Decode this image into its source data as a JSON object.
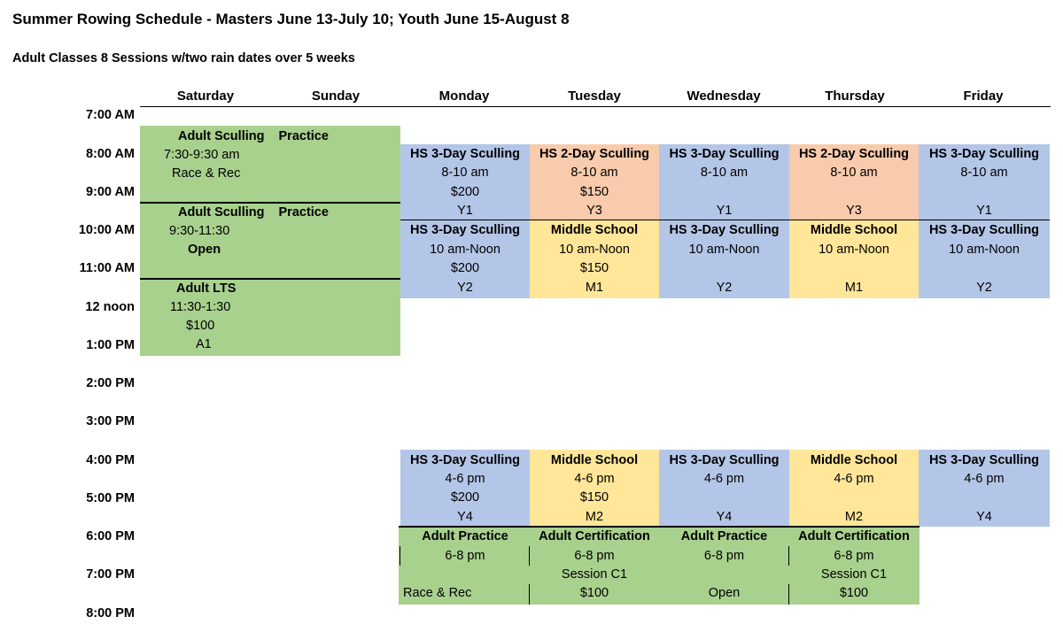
{
  "header": {
    "title": "Summer Rowing Schedule - Masters June 13-July 10; Youth June 15-August 8",
    "subtitle": "Adult Classes 8 Sessions w/two rain dates over 5 weeks"
  },
  "days": [
    "Saturday",
    "Sunday",
    "Monday",
    "Tuesday",
    "Wednesday",
    "Thursday",
    "Friday"
  ],
  "times": [
    "7:00 AM",
    "8:00 AM",
    "9:00 AM",
    "10:00 AM",
    "11:00 AM",
    "12 noon",
    "1:00 PM",
    "2:00 PM",
    "3:00 PM",
    "4:00 PM",
    "5:00 PM",
    "6:00 PM",
    "7:00 PM",
    "8:00 PM"
  ],
  "weekend": {
    "sculling_1": {
      "title": "Adult Sculling",
      "tag": "Practice",
      "time": "7:30-9:30 am",
      "note": "Race & Rec"
    },
    "sculling_2": {
      "title": "Adult Sculling",
      "tag": "Practice",
      "time": "9:30-11:30",
      "note": "Open"
    },
    "lts": {
      "title": "Adult LTS",
      "time": "11:30-1:30",
      "price": "$100",
      "code": "A1"
    }
  },
  "morning_early": {
    "monday": {
      "title": "HS 3-Day Sculling",
      "time": "8-10 am",
      "price": "$200",
      "code": "Y1"
    },
    "tuesday": {
      "title": "HS 2-Day Sculling",
      "time": "8-10 am",
      "price": "$150",
      "code": "Y3"
    },
    "wednesday": {
      "title": "HS 3-Day Sculling",
      "time": "8-10 am",
      "code": "Y1"
    },
    "thursday": {
      "title": "HS 2-Day Sculling",
      "time": "8-10 am",
      "code": "Y3"
    },
    "friday": {
      "title": "HS 3-Day Sculling",
      "time": "8-10 am",
      "code": "Y1"
    }
  },
  "morning_late": {
    "monday": {
      "title": "HS 3-Day Sculling",
      "time": "10 am-Noon",
      "price": "$200",
      "code": "Y2"
    },
    "tuesday": {
      "title": "Middle School",
      "time": "10 am-Noon",
      "price": "$150",
      "code": "M1"
    },
    "wednesday": {
      "title": "HS 3-Day Sculling",
      "time": "10 am-Noon",
      "code": "Y2"
    },
    "thursday": {
      "title": "Middle School",
      "time": "10 am-Noon",
      "code": "M1"
    },
    "friday": {
      "title": "HS 3-Day Sculling",
      "time": "10 am-Noon",
      "code": "Y2"
    }
  },
  "afternoon": {
    "monday": {
      "title": "HS 3-Day Sculling",
      "time": "4-6 pm",
      "price": "$200",
      "code": "Y4"
    },
    "tuesday": {
      "title": "Middle School",
      "time": "4-6 pm",
      "price": "$150",
      "code": "M2"
    },
    "wednesday": {
      "title": "HS 3-Day Sculling",
      "time": "4-6 pm",
      "code": "Y4"
    },
    "thursday": {
      "title": "Middle School",
      "time": "4-6 pm",
      "code": "M2"
    },
    "friday": {
      "title": "HS 3-Day Sculling",
      "time": "4-6 pm",
      "code": "Y4"
    }
  },
  "evening": {
    "monday": {
      "title": "Adult Practice",
      "time": "6-8 pm",
      "note": "Race & Rec"
    },
    "tuesday": {
      "title": "Adult Certification",
      "time": "6-8 pm",
      "session": "Session C1",
      "price": "$100"
    },
    "wednesday": {
      "title": "Adult Practice",
      "time": "6-8 pm",
      "note": "Open"
    },
    "thursday": {
      "title": "Adult Certification",
      "time": "6-8 pm",
      "session": "Session C1",
      "price": "$100"
    }
  },
  "colors": {
    "green": "#a9d18e",
    "blue": "#b4c6e7",
    "peach": "#f8cbad",
    "yellow": "#ffe699"
  }
}
